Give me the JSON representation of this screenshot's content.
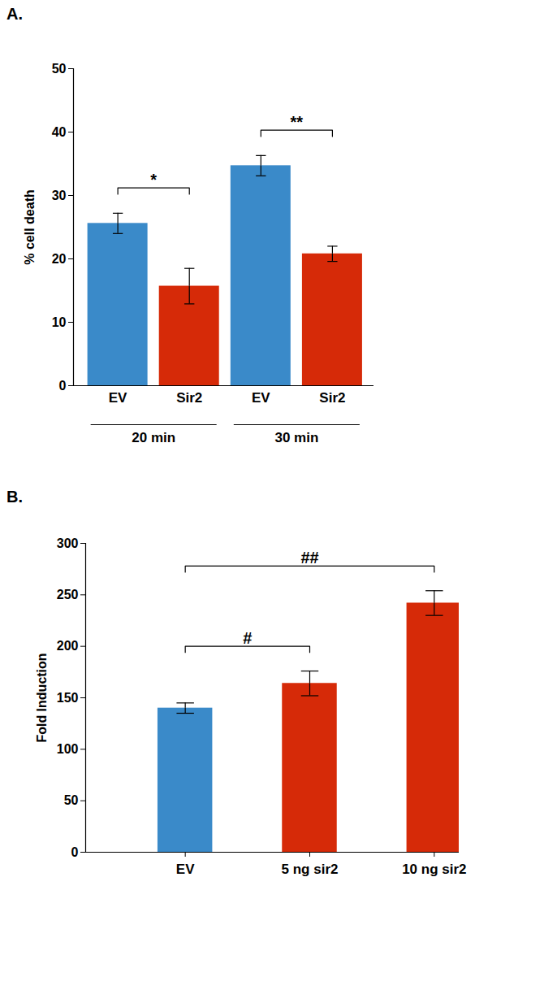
{
  "chart_data": [
    {
      "type": "bar",
      "title": "A.",
      "ylabel": "% cell death",
      "categories": [
        "EV",
        "Sir2",
        "EV",
        "Sir2"
      ],
      "groups": [
        "20 min",
        "20 min",
        "30 min",
        "30 min"
      ],
      "values": [
        25.6,
        15.7,
        34.7,
        20.8
      ],
      "errors": [
        1.6,
        2.8,
        1.6,
        1.2
      ],
      "colors": [
        "#3a8ac9",
        "#d62a08",
        "#3a8ac9",
        "#d62a08"
      ],
      "ylim": [
        0,
        50
      ],
      "yticks": [
        0,
        10,
        20,
        30,
        40,
        50
      ],
      "comparisons": [
        {
          "from": 0,
          "to": 1,
          "label": "*"
        },
        {
          "from": 2,
          "to": 3,
          "label": "**"
        }
      ]
    },
    {
      "type": "bar",
      "title": "B.",
      "ylabel": "Fold Induction",
      "categories": [
        "EV",
        "5 ng sir2",
        "10 ng sir2"
      ],
      "values": [
        140,
        164,
        242
      ],
      "errors": [
        5,
        12,
        12
      ],
      "colors": [
        "#3a8ac9",
        "#d62a08",
        "#d62a08"
      ],
      "ylim": [
        0,
        300
      ],
      "yticks": [
        0,
        50,
        100,
        150,
        200,
        250,
        300
      ],
      "comparisons": [
        {
          "from": 0,
          "to": 1,
          "label": "#"
        },
        {
          "from": 0,
          "to": 2,
          "label": "##"
        }
      ]
    }
  ]
}
